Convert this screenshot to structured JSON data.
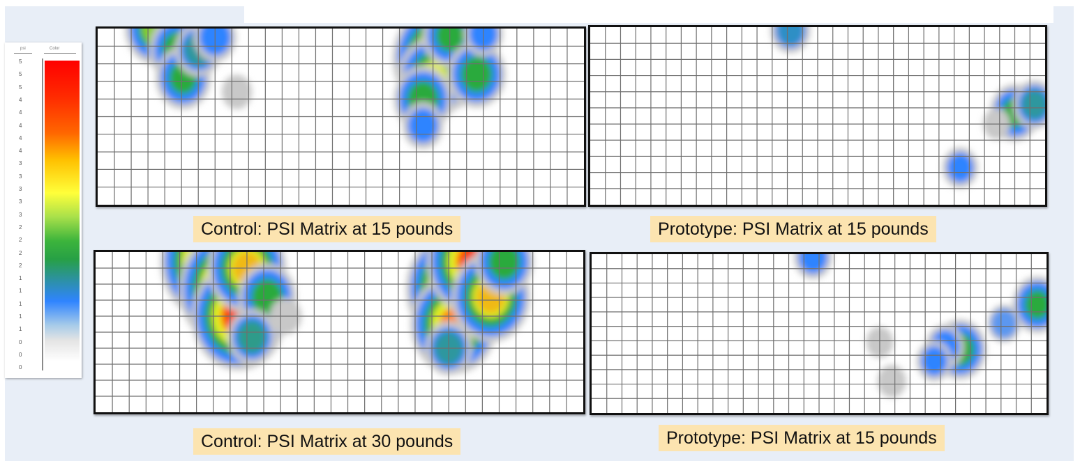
{
  "legend": {
    "header_left": "psi",
    "header_right": "Color",
    "ticks": [
      "5",
      "5",
      "5",
      "4",
      "4",
      "4",
      "4",
      "4",
      "3",
      "3",
      "3",
      "3",
      "3",
      "2",
      "2",
      "2",
      "2",
      "1",
      "1",
      "1",
      "1",
      "1",
      "0",
      "0",
      "0"
    ]
  },
  "chart_data": [
    {
      "type": "heatmap",
      "title": "Control: PSI Matrix at 15 pounds",
      "grid": {
        "cols": 29,
        "rows": 10
      },
      "hotspots": [
        {
          "col": 3.5,
          "row": 0.0,
          "psi": 2.5
        },
        {
          "col": 4.8,
          "row": 1.2,
          "psi": 2.2
        },
        {
          "col": 5.1,
          "row": 2.8,
          "psi": 2.0
        },
        {
          "col": 6.0,
          "row": 1.2,
          "psi": 1.5
        },
        {
          "col": 7.0,
          "row": 0.5,
          "psi": 1.2
        },
        {
          "col": 20.4,
          "row": 1.7,
          "psi": 4.5
        },
        {
          "col": 20.0,
          "row": 2.8,
          "psi": 3.0
        },
        {
          "col": 19.4,
          "row": 4.0,
          "psi": 2.2
        },
        {
          "col": 21.0,
          "row": 0.4,
          "psi": 2.0
        },
        {
          "col": 22.6,
          "row": 2.6,
          "psi": 2.2
        },
        {
          "col": 19.4,
          "row": 5.5,
          "psi": 1.1
        },
        {
          "col": 23.0,
          "row": 0.3,
          "psi": 1.0
        },
        {
          "col": 8.3,
          "row": 3.6,
          "psi": 0.4
        }
      ]
    },
    {
      "type": "heatmap",
      "title": "Prototype: PSI Matrix at 15 pounds",
      "grid": {
        "cols": 30,
        "rows": 11
      },
      "hotspots": [
        {
          "col": 13.2,
          "row": 0.2,
          "psi": 1.3
        },
        {
          "col": 28.0,
          "row": 5.3,
          "psi": 2.0
        },
        {
          "col": 29.3,
          "row": 4.8,
          "psi": 1.5
        },
        {
          "col": 24.4,
          "row": 8.7,
          "psi": 1.0
        },
        {
          "col": 26.8,
          "row": 6.0,
          "psi": 0.4
        }
      ]
    },
    {
      "type": "heatmap",
      "title": "Control: PSI Matrix at 30 pounds",
      "grid": {
        "cols": 29,
        "rows": 10
      },
      "hotspots": [
        {
          "col": 6.9,
          "row": 0.6,
          "psi": 5.0
        },
        {
          "col": 8.0,
          "row": 2.3,
          "psi": 5.0
        },
        {
          "col": 8.5,
          "row": 4.0,
          "psi": 4.5
        },
        {
          "col": 9.0,
          "row": 1.0,
          "psi": 3.5
        },
        {
          "col": 10.2,
          "row": 2.8,
          "psi": 2.2
        },
        {
          "col": 9.3,
          "row": 5.3,
          "psi": 1.6
        },
        {
          "col": 21.5,
          "row": 2.3,
          "psi": 5.0
        },
        {
          "col": 21.3,
          "row": 4.5,
          "psi": 4.0
        },
        {
          "col": 22.5,
          "row": 0.6,
          "psi": 4.5
        },
        {
          "col": 23.5,
          "row": 2.8,
          "psi": 3.5
        },
        {
          "col": 24.3,
          "row": 0.6,
          "psi": 2.2
        },
        {
          "col": 21.0,
          "row": 6.0,
          "psi": 1.5
        },
        {
          "col": 11.3,
          "row": 4.0,
          "psi": 0.5
        }
      ]
    },
    {
      "type": "heatmap",
      "title": "Prototype: PSI Matrix at 15 pounds",
      "grid": {
        "cols": 30,
        "rows": 11
      },
      "hotspots": [
        {
          "col": 14.6,
          "row": 0.2,
          "psi": 1.2
        },
        {
          "col": 24.3,
          "row": 6.6,
          "psi": 2.2
        },
        {
          "col": 23.3,
          "row": 6.4,
          "psi": 1.2
        },
        {
          "col": 22.6,
          "row": 7.4,
          "psi": 1.0
        },
        {
          "col": 29.4,
          "row": 3.5,
          "psi": 2.0
        },
        {
          "col": 27.2,
          "row": 4.8,
          "psi": 0.8
        },
        {
          "col": 19.0,
          "row": 6.1,
          "psi": 0.4
        },
        {
          "col": 19.8,
          "row": 8.8,
          "psi": 0.5
        }
      ]
    }
  ]
}
